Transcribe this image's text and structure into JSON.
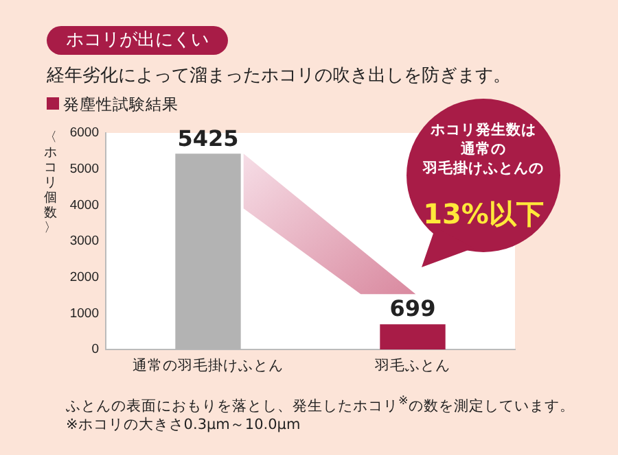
{
  "chart_data": {
    "type": "bar",
    "title": "ホコリが出にくい",
    "subtitle": "経年劣化によって溜まったホコリの吹き出しを防ぎます。",
    "ylabel": "〈ホコリ個数〉",
    "categories": [
      "通常の羽毛掛けふとん",
      "羽毛ふとん"
    ],
    "values": [
      5425,
      699
    ],
    "colors": [
      "#b3b3b3",
      "#a81c47"
    ],
    "ylim": [
      0,
      6000
    ],
    "yticks": [
      0,
      1000,
      2000,
      3000,
      4000,
      5000,
      6000
    ],
    "grid": false,
    "legend": false,
    "data_labels": true,
    "annotations": [
      "発塵性試験結果",
      "ホコリ発生数は",
      "通常の",
      "羽毛掛けふとんの",
      "13%以下",
      "ふとんの表面におもりを落とし、発生したホコリ$^{※}$の数を測定しています。",
      "※ホコリの大きさ0.3μm～10.0μm"
    ]
  }
}
